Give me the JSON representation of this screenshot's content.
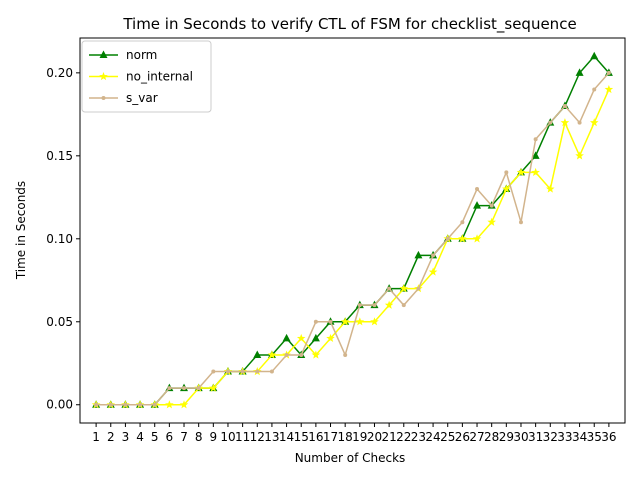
{
  "chart_data": {
    "type": "line",
    "title": "Time in Seconds to verify CTL of FSM for checklist_sequence",
    "xlabel": "Number of Checks",
    "ylabel": "Time in Seconds",
    "x": [
      1,
      2,
      3,
      4,
      5,
      6,
      7,
      8,
      9,
      10,
      11,
      12,
      13,
      14,
      15,
      16,
      17,
      18,
      19,
      20,
      21,
      22,
      23,
      24,
      25,
      26,
      27,
      28,
      29,
      30,
      31,
      32,
      33,
      34,
      35,
      36
    ],
    "xlim": [
      -0.1,
      37.1
    ],
    "ylim": [
      -0.011,
      0.221
    ],
    "yticks": [
      0.0,
      0.05,
      0.1,
      0.15,
      0.2
    ],
    "ytick_labels": [
      "0.00",
      "0.05",
      "0.10",
      "0.15",
      "0.20"
    ],
    "grid": false,
    "legend_position": "top-left",
    "series": [
      {
        "name": "norm",
        "color": "#008000",
        "marker": "triangle",
        "values": [
          0,
          0,
          0,
          0,
          0,
          0.01,
          0.01,
          0.01,
          0.01,
          0.02,
          0.02,
          0.03,
          0.03,
          0.04,
          0.03,
          0.04,
          0.05,
          0.05,
          0.06,
          0.06,
          0.07,
          0.07,
          0.09,
          0.09,
          0.1,
          0.1,
          0.12,
          0.12,
          0.13,
          0.14,
          0.15,
          0.17,
          0.18,
          0.2,
          0.21,
          0.2
        ]
      },
      {
        "name": "no_internal",
        "color": "#ffff00",
        "marker": "star",
        "values": [
          0,
          0,
          0,
          0,
          0,
          0,
          0,
          0.01,
          0.01,
          0.02,
          0.02,
          0.02,
          0.03,
          0.03,
          0.04,
          0.03,
          0.04,
          0.05,
          0.05,
          0.05,
          0.06,
          0.07,
          0.07,
          0.08,
          0.1,
          0.1,
          0.1,
          0.11,
          0.13,
          0.14,
          0.14,
          0.13,
          0.17,
          0.15,
          0.17,
          0.19
        ]
      },
      {
        "name": "s_var",
        "color": "#d2b48c",
        "marker": "dot",
        "values": [
          0,
          0,
          0,
          0,
          0,
          0.01,
          0.01,
          0.01,
          0.02,
          0.02,
          0.02,
          0.02,
          0.02,
          0.03,
          0.03,
          0.05,
          0.05,
          0.03,
          0.06,
          0.06,
          0.07,
          0.06,
          0.07,
          0.09,
          0.1,
          0.11,
          0.13,
          0.12,
          0.14,
          0.11,
          0.16,
          0.17,
          0.18,
          0.17,
          0.19,
          0.2
        ]
      }
    ]
  }
}
